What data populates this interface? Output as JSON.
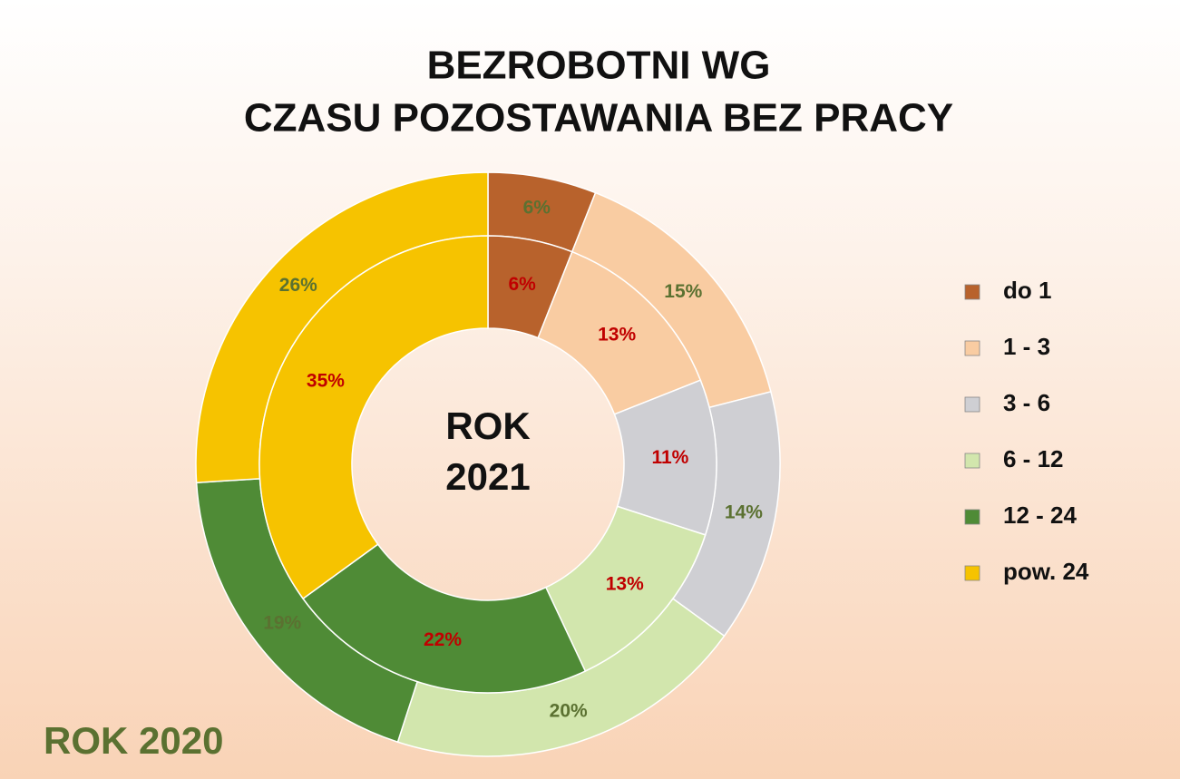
{
  "chart_data": {
    "type": "donut",
    "title": [
      "BEZROBOTNI WG",
      "CZASU POZOSTAWANIA BEZ PRACY"
    ],
    "categories": [
      "do 1",
      "1 - 3",
      "3 - 6",
      "6 - 12",
      "12 - 24",
      "pow. 24"
    ],
    "colors": [
      "#b8622c",
      "#f9cca2",
      "#cfcfd3",
      "#d2e6ad",
      "#4f8b36",
      "#f6c300"
    ],
    "series": [
      {
        "name": "ROK 2020",
        "label_color": "#5b7131",
        "values": [
          6,
          15,
          14,
          20,
          19,
          26
        ],
        "value_labels": [
          "6%",
          "15%",
          "14%",
          "20%",
          "19%",
          "26%"
        ]
      },
      {
        "name": "ROK 2021",
        "label_color": "#c00000",
        "values": [
          6,
          13,
          11,
          13,
          22,
          35
        ],
        "value_labels": [
          "6%",
          "13%",
          "11%",
          "13%",
          "22%",
          "35%"
        ]
      }
    ]
  }
}
